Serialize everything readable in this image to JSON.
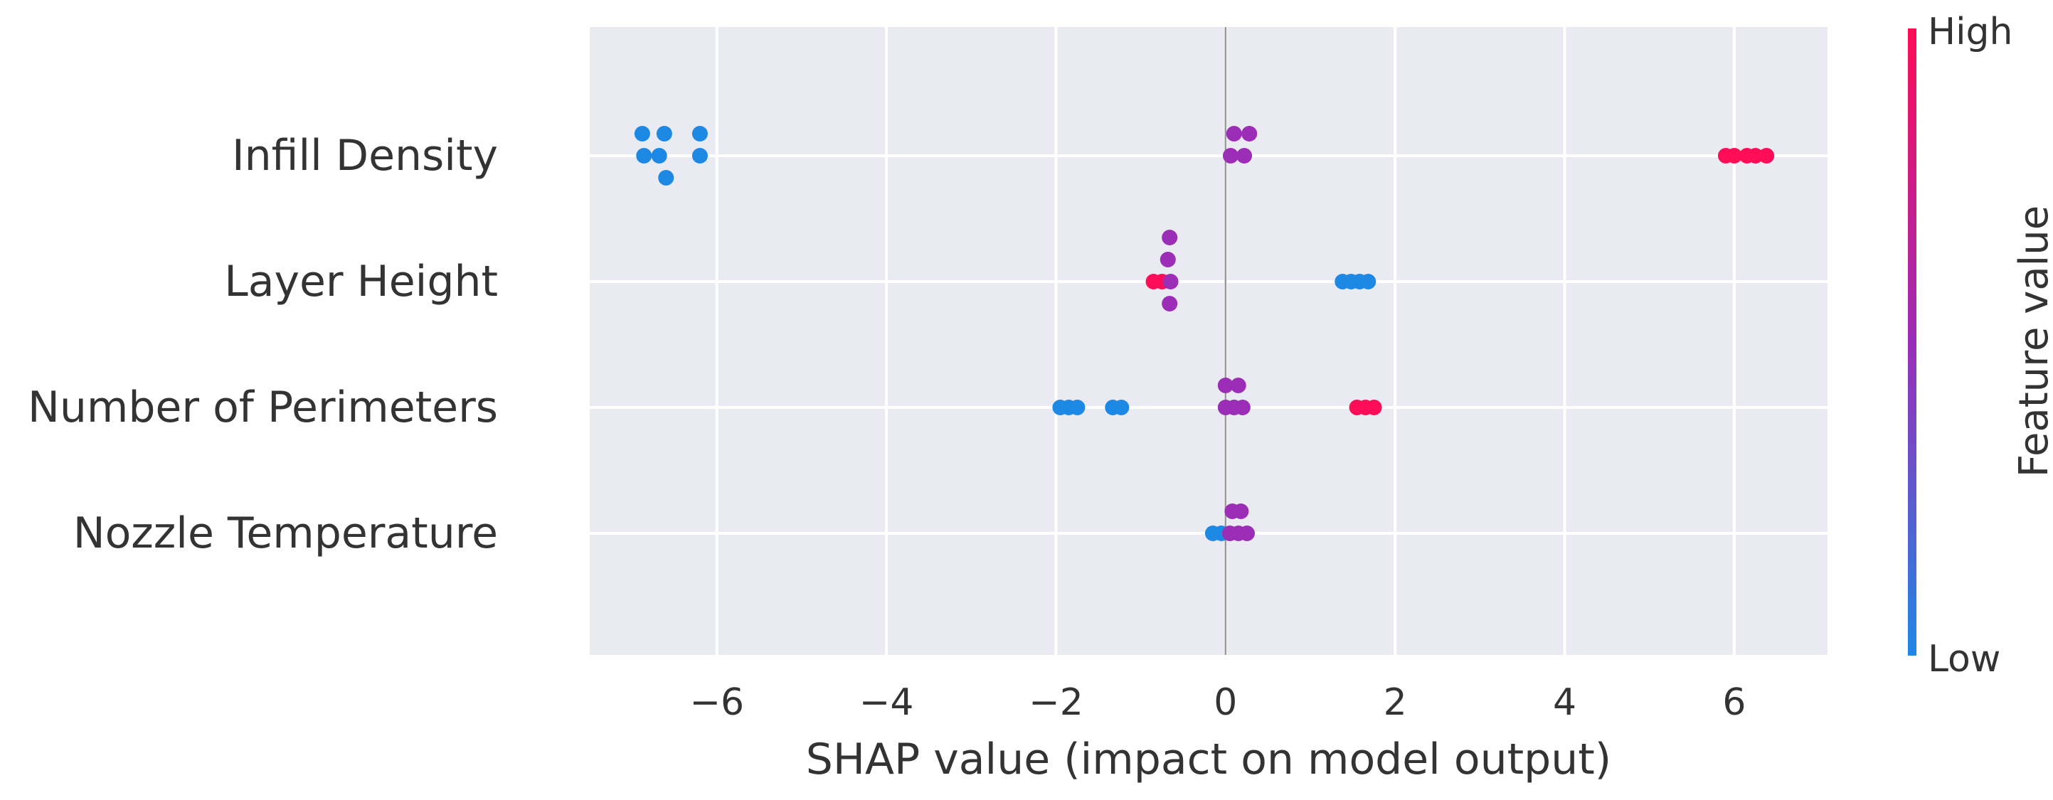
{
  "chart_data": {
    "type": "scatter",
    "subtype": "shap-beeswarm-summary",
    "title": "",
    "xlabel": "SHAP value (impact on model output)",
    "ylabel": "",
    "xlim": [
      -7.5,
      7.1
    ],
    "xticks": [
      -6,
      -4,
      -2,
      0,
      2,
      4,
      6
    ],
    "xtick_labels": [
      "−6",
      "−4",
      "−2",
      "0",
      "2",
      "4",
      "6"
    ],
    "grid": true,
    "zero_line": true,
    "features": [
      {
        "name": "Infill Density",
        "points": [
          {
            "x": -6.88,
            "v": 0.0,
            "off": -1
          },
          {
            "x": -6.62,
            "v": 0.0,
            "off": -1
          },
          {
            "x": -6.2,
            "v": 0.0,
            "off": -1
          },
          {
            "x": -6.86,
            "v": 0.0,
            "off": 0
          },
          {
            "x": -6.68,
            "v": 0.0,
            "off": 0
          },
          {
            "x": -6.2,
            "v": 0.0,
            "off": 0
          },
          {
            "x": -6.6,
            "v": 0.0,
            "off": 1
          },
          {
            "x": 0.1,
            "v": 0.5,
            "off": -1
          },
          {
            "x": 0.28,
            "v": 0.5,
            "off": -1
          },
          {
            "x": 0.06,
            "v": 0.5,
            "off": 0
          },
          {
            "x": 0.22,
            "v": 0.5,
            "off": 0
          },
          {
            "x": 5.9,
            "v": 1.0,
            "off": 0
          },
          {
            "x": 6.0,
            "v": 1.0,
            "off": 0
          },
          {
            "x": 6.15,
            "v": 1.0,
            "off": 0
          },
          {
            "x": 6.25,
            "v": 1.0,
            "off": 0
          },
          {
            "x": 6.38,
            "v": 1.0,
            "off": 0
          }
        ]
      },
      {
        "name": "Layer Height",
        "points": [
          {
            "x": -0.66,
            "v": 0.5,
            "off": -2
          },
          {
            "x": -0.68,
            "v": 0.5,
            "off": -1
          },
          {
            "x": -0.85,
            "v": 1.0,
            "off": 0
          },
          {
            "x": -0.78,
            "v": 1.0,
            "off": 0
          },
          {
            "x": -0.66,
            "v": 0.5,
            "off": 0
          },
          {
            "x": -0.66,
            "v": 0.5,
            "off": 1
          },
          {
            "x": 1.38,
            "v": 0.0,
            "off": 0
          },
          {
            "x": 1.48,
            "v": 0.0,
            "off": 0
          },
          {
            "x": 1.56,
            "v": 0.0,
            "off": 0
          },
          {
            "x": 1.68,
            "v": 0.0,
            "off": 0
          }
        ]
      },
      {
        "name": "Number of Perimeters",
        "points": [
          {
            "x": -1.95,
            "v": 0.0,
            "off": 0
          },
          {
            "x": -1.9,
            "v": 0.0,
            "off": 0
          },
          {
            "x": -1.75,
            "v": 0.0,
            "off": 0
          },
          {
            "x": -1.33,
            "v": 0.0,
            "off": 0
          },
          {
            "x": -1.25,
            "v": 0.0,
            "off": 0
          },
          {
            "x": 0.0,
            "v": 0.5,
            "off": -1
          },
          {
            "x": 0.15,
            "v": 0.5,
            "off": -1
          },
          {
            "x": 0.0,
            "v": 0.5,
            "off": 0
          },
          {
            "x": 0.08,
            "v": 0.5,
            "off": 0
          },
          {
            "x": 0.18,
            "v": 0.5,
            "off": 0
          },
          {
            "x": 1.55,
            "v": 1.0,
            "off": 0
          },
          {
            "x": 1.65,
            "v": 1.0,
            "off": 0
          },
          {
            "x": 1.75,
            "v": 1.0,
            "off": 0
          }
        ]
      },
      {
        "name": "Nozzle Temperature",
        "points": [
          {
            "x": 0.08,
            "v": 0.5,
            "off": -1
          },
          {
            "x": 0.15,
            "v": 0.5,
            "off": -1
          },
          {
            "x": -0.15,
            "v": 0.0,
            "off": 0
          },
          {
            "x": -0.08,
            "v": 0.0,
            "off": 0
          },
          {
            "x": 0.0,
            "v": 0.5,
            "off": 0
          },
          {
            "x": 0.08,
            "v": 0.5,
            "off": 0
          },
          {
            "x": 0.15,
            "v": 0.5,
            "off": 0
          }
        ]
      }
    ],
    "colorbar": {
      "label": "Feature value",
      "high_label": "High",
      "low_label": "Low",
      "low_color": "#1E88E5",
      "mid_color": "#9B2DB7",
      "high_color": "#FF0D57"
    },
    "colors": {
      "plot_background": "#EAEAF2",
      "grid": "#FFFFFF",
      "zero_line": "#999999",
      "text": "#333333"
    }
  }
}
